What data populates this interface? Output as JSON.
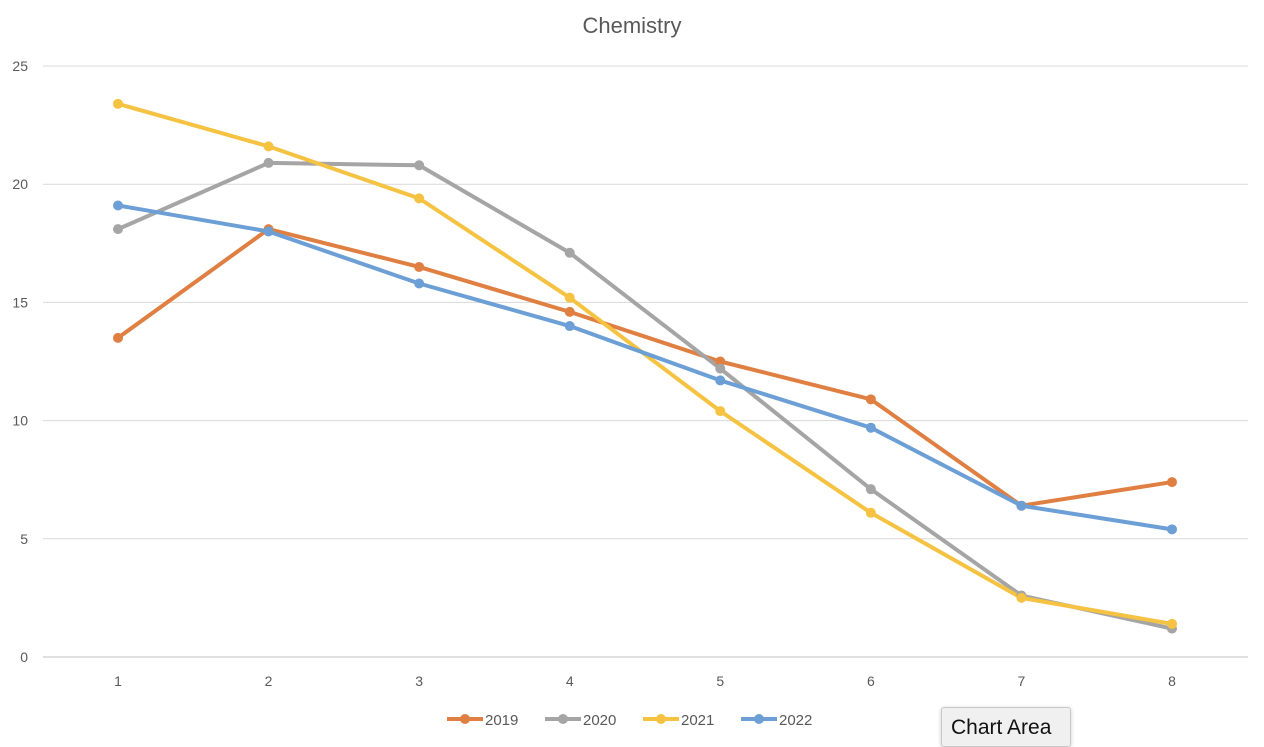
{
  "chart_data": {
    "type": "line",
    "title": "Chemistry",
    "xlabel": "",
    "ylabel": "",
    "categories": [
      "1",
      "2",
      "3",
      "4",
      "5",
      "6",
      "7",
      "8"
    ],
    "ylim": [
      0,
      25
    ],
    "yticks": [
      0,
      5,
      10,
      15,
      20,
      25
    ],
    "grid": true,
    "legend": "bottom",
    "series": [
      {
        "name": "2019",
        "color": "#E07F42",
        "values": [
          13.5,
          18.1,
          16.5,
          14.6,
          12.5,
          10.9,
          6.4,
          7.4
        ]
      },
      {
        "name": "2020",
        "color": "#A5A5A5",
        "values": [
          18.1,
          20.9,
          20.8,
          17.1,
          12.2,
          7.1,
          2.6,
          1.2
        ]
      },
      {
        "name": "2021",
        "color": "#F5C242",
        "values": [
          23.4,
          21.6,
          19.4,
          15.2,
          10.4,
          6.1,
          2.5,
          1.4
        ]
      },
      {
        "name": "2022",
        "color": "#6C9FD6",
        "values": [
          19.1,
          18.0,
          15.8,
          14.0,
          11.7,
          9.7,
          6.4,
          5.4
        ]
      }
    ]
  },
  "tooltip": {
    "label": "Chart Area"
  }
}
